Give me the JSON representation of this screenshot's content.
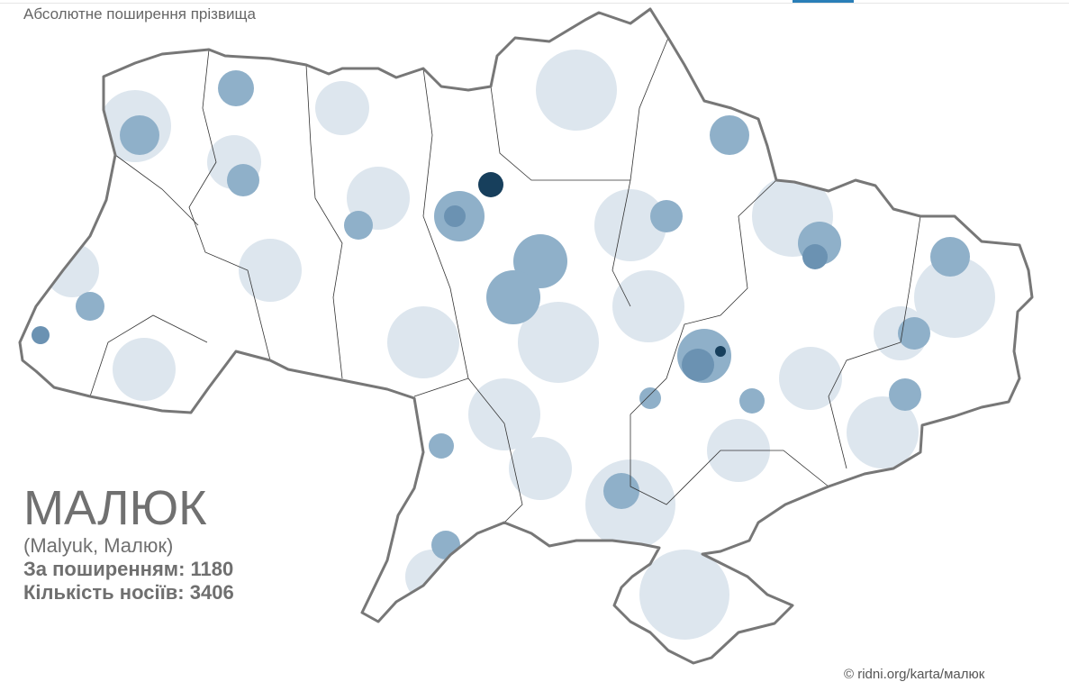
{
  "header": {
    "subtitle": "Абсолютне поширення прізвища"
  },
  "surname": {
    "name": "МАЛЮК",
    "variants": "(Malyuk, Малюк)",
    "rank_line": "За поширенням: 1180",
    "count_line": "Кількість носіїв:  3406"
  },
  "footer": {
    "credit": "© ridni.org/karta/малюк"
  },
  "colors": {
    "border": "#777777",
    "none": "#ffffff",
    "low": "#dde6ee",
    "medium_low": "#c0d1df",
    "medium": "#8fb0c9",
    "high": "#6b92b2",
    "max": "#173f5c",
    "accent": "#2a7fb8"
  }
}
